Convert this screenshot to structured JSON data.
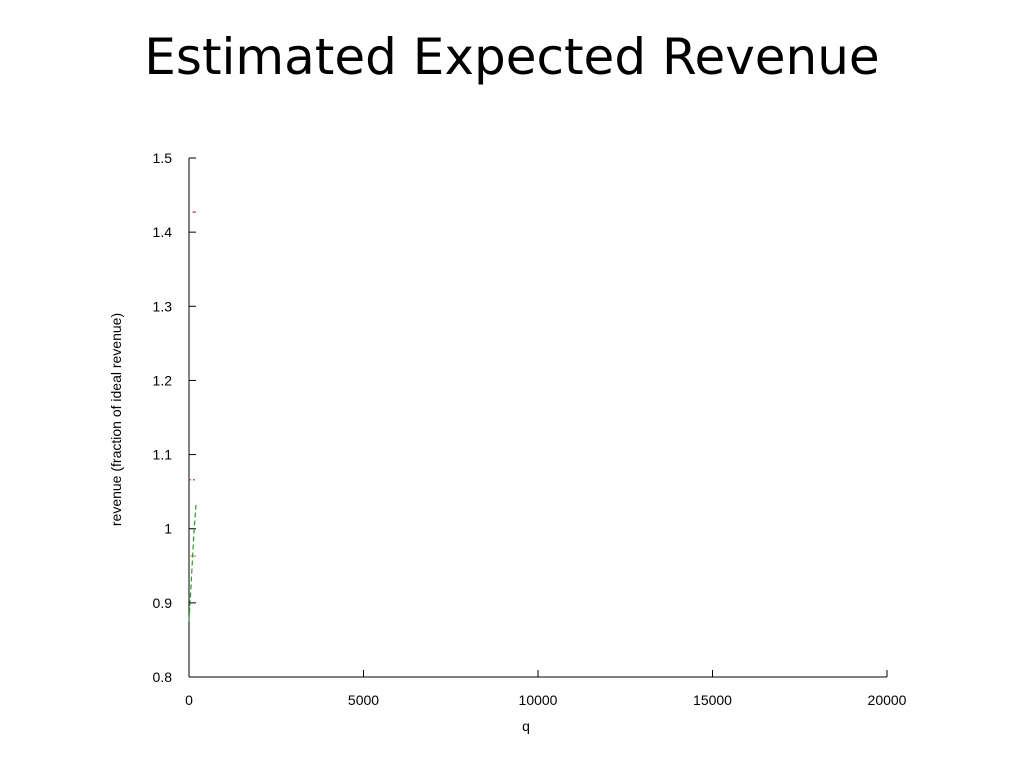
{
  "slide": {
    "title": "Estimated Expected Revenue"
  },
  "chart_data": {
    "type": "line",
    "title": "",
    "xlabel": "q",
    "ylabel": "revenue (fraction of ideal revenue)",
    "xlim": [
      0,
      20000
    ],
    "ylim": [
      0.8,
      1.5
    ],
    "xticks": [
      0,
      5000,
      10000,
      15000,
      20000
    ],
    "xtick_labels": [
      "0",
      "5000",
      "10000",
      "15000",
      "20000"
    ],
    "yticks": [
      0.8,
      0.9,
      1.0,
      1.1,
      1.2,
      1.3,
      1.4,
      1.5
    ],
    "ytick_labels": [
      "0.8",
      "0.9",
      "1",
      "1.1",
      "1.2",
      "1.3",
      "1.4",
      "1.5"
    ],
    "grid": false,
    "series": [
      {
        "color": "#d22a2a",
        "style": "dashed",
        "x": [
          100,
          200
        ],
        "y": [
          1.427,
          1.427
        ]
      },
      {
        "color": "#d22a2a",
        "style": "dotted",
        "x": [
          0,
          200
        ],
        "y": [
          1.066,
          1.066
        ]
      },
      {
        "color": "#c8a03c",
        "style": "solid",
        "x": [
          0,
          200
        ],
        "y": [
          0.963,
          0.963
        ]
      },
      {
        "color": "#2a9a2a",
        "style": "dashed",
        "x": [
          0,
          50,
          100,
          150,
          200
        ],
        "y": [
          0.875,
          0.915,
          0.96,
          1.0,
          1.032
        ]
      }
    ]
  }
}
